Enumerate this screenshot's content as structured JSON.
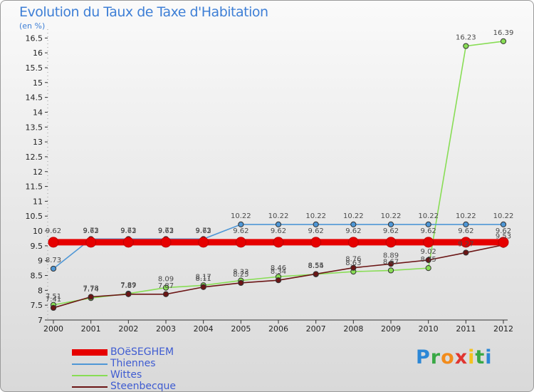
{
  "chart_data": {
    "type": "line",
    "title": "Evolution du Taux de Taxe d'Habitation",
    "subtitle": "(en %)",
    "x": [
      "2000",
      "2001",
      "2002",
      "2003",
      "2004",
      "2005",
      "2006",
      "2007",
      "2008",
      "2009",
      "2010",
      "2011",
      "2012"
    ],
    "ylim": [
      7,
      16.7
    ],
    "yticks": [
      "7",
      "7.5",
      "8",
      "8.5",
      "9",
      "9.5",
      "10",
      "10.5",
      "11",
      "11.5",
      "12",
      "12.5",
      "13",
      "13.5",
      "14",
      "14.5",
      "15",
      "15.5",
      "16",
      "16.5"
    ],
    "grid": false,
    "legend_position": "bottom-left",
    "series": [
      {
        "name": "BOëSEGHEM",
        "color": "#e60000",
        "values": [
          9.62,
          9.62,
          9.62,
          9.62,
          9.62,
          9.62,
          9.62,
          9.62,
          9.62,
          9.62,
          9.62,
          9.62,
          9.62
        ],
        "labels": [
          "9.62",
          "9.62",
          "9.62",
          "9.62",
          "9.62",
          "9.62",
          "9.62",
          "9.62",
          "9.62",
          "9.62",
          "9.62",
          "9.62",
          "9.62"
        ]
      },
      {
        "name": "Thiennes",
        "color": "#4f97d6",
        "values": [
          8.73,
          9.73,
          9.73,
          9.73,
          9.73,
          10.22,
          10.22,
          10.22,
          10.22,
          10.22,
          10.22,
          10.22,
          10.22
        ],
        "labels": [
          "8.73",
          "9.73",
          "9.73",
          "9.73",
          "9.73",
          "10.22",
          "10.22",
          "10.22",
          "10.22",
          "10.22",
          "10.22",
          "10.22",
          "10.22"
        ]
      },
      {
        "name": "Wittes",
        "color": "#88dd55",
        "values": [
          7.51,
          7.74,
          7.89,
          8.09,
          8.17,
          8.33,
          8.46,
          8.54,
          8.63,
          8.67,
          8.75,
          16.23,
          16.39
        ],
        "labels": [
          "7.51",
          "7.74",
          "7.89",
          "8.09",
          "8.17",
          "8.33",
          "8.46",
          "8.54",
          "8.63",
          "8.67",
          "8.75",
          "16.23",
          "16.39"
        ]
      },
      {
        "name": "Steenbecque",
        "color": "#6b1515",
        "values": [
          7.41,
          7.78,
          7.87,
          7.87,
          8.11,
          8.25,
          8.34,
          8.55,
          8.76,
          8.89,
          9.02,
          9.27,
          9.53
        ],
        "labels": [
          "7.41",
          "7.78",
          "7.87",
          "7.87",
          "8.11",
          "8.25",
          "8.34",
          "8.55",
          "8.76",
          "8.89",
          "9.02",
          "9.27",
          "9.53"
        ]
      }
    ]
  },
  "legend": {
    "items": [
      "BOëSEGHEM",
      "Thiennes",
      "Wittes",
      "Steenbecque"
    ]
  },
  "logo": {
    "letters": [
      "P",
      "r",
      "o",
      "x",
      "i",
      "t",
      "i"
    ],
    "colors": [
      "#2c87d6",
      "#39a845",
      "#f28c1c",
      "#e03530",
      "#f4c21f",
      "#39a845",
      "#2c87d6"
    ]
  }
}
